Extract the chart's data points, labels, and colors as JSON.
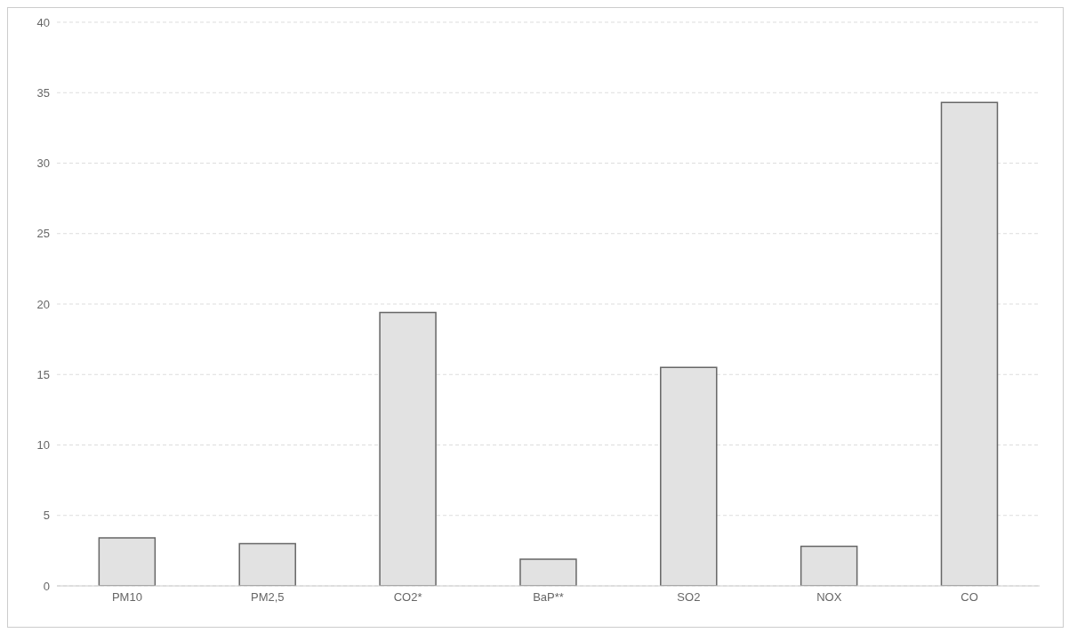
{
  "chart_data": {
    "type": "bar",
    "categories": [
      "PM10",
      "PM2,5",
      "CO2*",
      "BaP**",
      "SO2",
      "NOX",
      "CO"
    ],
    "values": [
      3.4,
      3.0,
      19.4,
      1.9,
      15.5,
      2.8,
      34.3
    ],
    "color": "#e2e2e2",
    "ylim": [
      0,
      40
    ],
    "yticks": [
      0,
      5,
      10,
      15,
      20,
      25,
      30,
      35,
      40
    ],
    "grid": "y"
  }
}
